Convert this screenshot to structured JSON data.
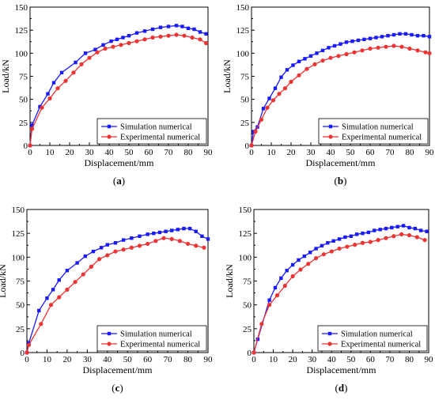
{
  "figure": {
    "panels": [
      {
        "id": "a",
        "caption": "(a)"
      },
      {
        "id": "b",
        "caption": "(b)"
      },
      {
        "id": "c",
        "caption": "(c)"
      },
      {
        "id": "d",
        "caption": "(d)"
      }
    ]
  },
  "colors": {
    "simulation": "#1a1aff",
    "experimental": "#ee3333",
    "axis": "#000000"
  },
  "chart_data": [
    {
      "type": "line",
      "panel": "a",
      "xlabel": "Displacement/mm",
      "ylabel": "Load/kN",
      "xlim": [
        0,
        90
      ],
      "ylim": [
        0,
        150
      ],
      "xticks": [
        0,
        10,
        20,
        30,
        40,
        50,
        60,
        70,
        80,
        90
      ],
      "yticks": [
        0,
        25,
        50,
        75,
        100,
        125,
        150
      ],
      "grid": false,
      "legend_position": "bottom-right",
      "series": [
        {
          "name": "Simulation numerical",
          "marker": "square",
          "x": [
            0,
            1,
            5,
            9,
            12,
            16,
            23,
            28,
            33,
            37,
            41,
            44,
            47,
            50,
            54,
            58,
            62,
            66,
            70,
            74,
            77,
            80,
            83,
            86,
            89
          ],
          "y": [
            0,
            22,
            42,
            56,
            68,
            79,
            90,
            100,
            104,
            109,
            113,
            115,
            117,
            119,
            122,
            124,
            126,
            128,
            129,
            130,
            129,
            127,
            126,
            123,
            121
          ]
        },
        {
          "name": "Experimental numerical",
          "marker": "circle",
          "x": [
            0,
            1,
            6,
            10,
            14,
            18,
            22,
            26,
            30,
            34,
            38,
            42,
            46,
            50,
            54,
            58,
            62,
            66,
            70,
            74,
            78,
            82,
            86,
            89
          ],
          "y": [
            0,
            18,
            41,
            51,
            62,
            70,
            79,
            88,
            95,
            101,
            105,
            107,
            109,
            111,
            113,
            115,
            117,
            118,
            119,
            120,
            119,
            117,
            115,
            111
          ]
        }
      ]
    },
    {
      "type": "line",
      "panel": "b",
      "xlabel": "Displacement/mm",
      "ylabel": "Load/kN",
      "xlim": [
        0,
        90
      ],
      "ylim": [
        0,
        150
      ],
      "xticks": [
        0,
        10,
        20,
        30,
        40,
        50,
        60,
        70,
        80,
        90
      ],
      "yticks": [
        0,
        25,
        50,
        75,
        100,
        125,
        150
      ],
      "grid": false,
      "legend_position": "bottom-right",
      "series": [
        {
          "name": "Simulation numerical",
          "marker": "square",
          "x": [
            0,
            1,
            3,
            6,
            9,
            12,
            15,
            18,
            21,
            24,
            27,
            30,
            33,
            36,
            39,
            42,
            45,
            48,
            51,
            54,
            57,
            60,
            63,
            66,
            69,
            72,
            75,
            78,
            81,
            84,
            87,
            90
          ],
          "y": [
            0,
            15,
            20,
            40,
            51,
            62,
            74,
            82,
            87,
            91,
            94,
            97,
            100,
            103,
            106,
            108,
            110,
            112,
            113,
            114,
            115,
            116,
            117,
            118,
            119,
            120,
            121,
            121,
            120,
            119,
            119,
            118
          ]
        },
        {
          "name": "Experimental numerical",
          "marker": "circle",
          "x": [
            0,
            2,
            5,
            8,
            11,
            14,
            17,
            20,
            24,
            28,
            32,
            36,
            40,
            44,
            48,
            52,
            56,
            60,
            64,
            68,
            72,
            76,
            80,
            84,
            88,
            90
          ],
          "y": [
            0,
            15,
            28,
            41,
            49,
            56,
            62,
            69,
            76,
            83,
            88,
            92,
            95,
            97,
            99,
            101,
            103,
            105,
            106,
            107,
            108,
            107,
            105,
            103,
            101,
            100
          ]
        }
      ]
    },
    {
      "type": "line",
      "panel": "c",
      "xlabel": "Displacement/mm",
      "ylabel": "Load/kN",
      "xlim": [
        0,
        90
      ],
      "ylim": [
        0,
        150
      ],
      "xticks": [
        0,
        10,
        20,
        30,
        40,
        50,
        60,
        70,
        80,
        90
      ],
      "yticks": [
        0,
        25,
        50,
        75,
        100,
        125,
        150
      ],
      "grid": false,
      "legend_position": "bottom-right",
      "series": [
        {
          "name": "Simulation numerical",
          "marker": "square",
          "x": [
            0,
            1,
            6,
            10,
            13,
            16,
            20,
            25,
            29,
            33,
            37,
            40,
            44,
            48,
            52,
            56,
            60,
            63,
            66,
            69,
            72,
            75,
            78,
            81,
            84,
            87,
            90
          ],
          "y": [
            0,
            10,
            44,
            57,
            66,
            76,
            86,
            94,
            101,
            106,
            110,
            113,
            115,
            118,
            120,
            122,
            124,
            125,
            126,
            127,
            128,
            129,
            130,
            130,
            127,
            122,
            119
          ]
        },
        {
          "name": "Experimental numerical",
          "marker": "circle",
          "x": [
            0,
            1,
            7,
            12,
            16,
            20,
            24,
            28,
            32,
            36,
            40,
            44,
            48,
            52,
            56,
            60,
            64,
            68,
            72,
            76,
            80,
            84,
            88
          ],
          "y": [
            0,
            8,
            30,
            50,
            58,
            66,
            74,
            82,
            90,
            98,
            102,
            106,
            108,
            110,
            112,
            114,
            117,
            120,
            119,
            117,
            114,
            112,
            110
          ]
        }
      ]
    },
    {
      "type": "line",
      "panel": "d",
      "xlabel": "Displacement/mm",
      "ylabel": "Load/kN",
      "xlim": [
        0,
        90
      ],
      "ylim": [
        0,
        150
      ],
      "xticks": [
        0,
        10,
        20,
        30,
        40,
        50,
        60,
        70,
        80,
        90
      ],
      "yticks": [
        0,
        25,
        50,
        75,
        100,
        125,
        150
      ],
      "grid": false,
      "legend_position": "bottom-right",
      "series": [
        {
          "name": "Simulation numerical",
          "marker": "square",
          "x": [
            0,
            2,
            8,
            11,
            14,
            17,
            20,
            23,
            26,
            29,
            32,
            35,
            38,
            41,
            44,
            47,
            50,
            53,
            56,
            59,
            62,
            65,
            68,
            71,
            74,
            77,
            80,
            83,
            86,
            89
          ],
          "y": [
            0,
            14,
            55,
            68,
            78,
            86,
            92,
            97,
            101,
            105,
            109,
            112,
            115,
            117,
            119,
            121,
            122,
            124,
            125,
            126,
            128,
            129,
            130,
            131,
            132,
            133,
            131,
            130,
            128,
            127
          ]
        },
        {
          "name": "Experimental numerical",
          "marker": "circle",
          "x": [
            0,
            4,
            8,
            12,
            16,
            20,
            24,
            28,
            32,
            36,
            40,
            44,
            48,
            52,
            56,
            60,
            64,
            68,
            72,
            76,
            80,
            84,
            88
          ],
          "y": [
            0,
            30,
            50,
            60,
            70,
            80,
            87,
            93,
            99,
            103,
            106,
            109,
            111,
            113,
            115,
            116,
            118,
            120,
            122,
            124,
            123,
            121,
            118
          ]
        }
      ]
    }
  ]
}
